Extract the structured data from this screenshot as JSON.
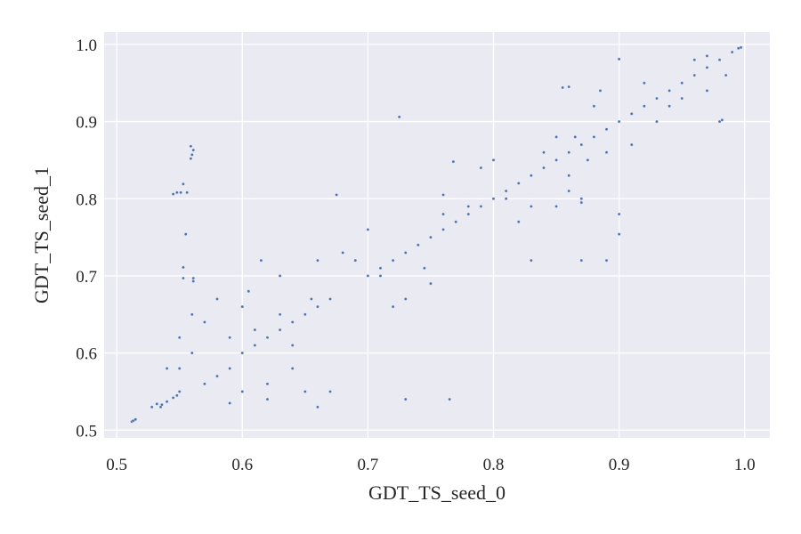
{
  "chart_data": {
    "type": "scatter",
    "xlabel": "GDT_TS_seed_0",
    "ylabel": "GDT_TS_seed_1",
    "xlim": [
      0.49,
      1.02
    ],
    "ylim": [
      0.49,
      1.016
    ],
    "xticks": [
      0.5,
      0.6,
      0.7,
      0.8,
      0.9,
      1.0
    ],
    "yticks": [
      0.5,
      0.6,
      0.7,
      0.8,
      0.9,
      1.0
    ],
    "xtick_labels": [
      "0.5",
      "0.6",
      "0.7",
      "0.8",
      "0.9",
      "1.0"
    ],
    "ytick_labels": [
      "0.5",
      "0.6",
      "0.7",
      "0.8",
      "0.9",
      "1.0"
    ],
    "grid": true,
    "colors": {
      "background": "#eaeaf2",
      "grid": "#ffffff",
      "marker": "#4c72b0",
      "marker_edge": "#ffffff"
    },
    "series": [
      {
        "points": [
          [
            0.512,
            0.511
          ],
          [
            0.514,
            0.513
          ],
          [
            0.515,
            0.514
          ],
          [
            0.513,
            0.512
          ],
          [
            0.528,
            0.53
          ],
          [
            0.532,
            0.534
          ],
          [
            0.536,
            0.533
          ],
          [
            0.535,
            0.53
          ],
          [
            0.54,
            0.537
          ],
          [
            0.545,
            0.542
          ],
          [
            0.548,
            0.545
          ],
          [
            0.55,
            0.55
          ],
          [
            0.545,
            0.806
          ],
          [
            0.548,
            0.808
          ],
          [
            0.551,
            0.808
          ],
          [
            0.553,
            0.819
          ],
          [
            0.556,
            0.808
          ],
          [
            0.559,
            0.852
          ],
          [
            0.56,
            0.857
          ],
          [
            0.561,
            0.863
          ],
          [
            0.559,
            0.868
          ],
          [
            0.555,
            0.754
          ],
          [
            0.553,
            0.711
          ],
          [
            0.553,
            0.697
          ],
          [
            0.561,
            0.697
          ],
          [
            0.561,
            0.693
          ],
          [
            0.54,
            0.58
          ],
          [
            0.55,
            0.62
          ],
          [
            0.56,
            0.6
          ],
          [
            0.57,
            0.64
          ],
          [
            0.58,
            0.57
          ],
          [
            0.59,
            0.62
          ],
          [
            0.55,
            0.58
          ],
          [
            0.57,
            0.56
          ],
          [
            0.56,
            0.65
          ],
          [
            0.58,
            0.67
          ],
          [
            0.59,
            0.58
          ],
          [
            0.6,
            0.55
          ],
          [
            0.61,
            0.63
          ],
          [
            0.62,
            0.56
          ],
          [
            0.63,
            0.65
          ],
          [
            0.64,
            0.58
          ],
          [
            0.65,
            0.55
          ],
          [
            0.6,
            0.66
          ],
          [
            0.62,
            0.54
          ],
          [
            0.66,
            0.53
          ],
          [
            0.67,
            0.55
          ],
          [
            0.64,
            0.61
          ],
          [
            0.655,
            0.67
          ],
          [
            0.59,
            0.535
          ],
          [
            0.605,
            0.68
          ],
          [
            0.615,
            0.72
          ],
          [
            0.63,
            0.7
          ],
          [
            0.66,
            0.72
          ],
          [
            0.675,
            0.805
          ],
          [
            0.68,
            0.73
          ],
          [
            0.69,
            0.72
          ],
          [
            0.7,
            0.76
          ],
          [
            0.71,
            0.7
          ],
          [
            0.72,
            0.66
          ],
          [
            0.73,
            0.67
          ],
          [
            0.745,
            0.71
          ],
          [
            0.75,
            0.69
          ],
          [
            0.76,
            0.78
          ],
          [
            0.765,
            0.54
          ],
          [
            0.768,
            0.848
          ],
          [
            0.73,
            0.54
          ],
          [
            0.725,
            0.906
          ],
          [
            0.76,
            0.805
          ],
          [
            0.78,
            0.79
          ],
          [
            0.79,
            0.84
          ],
          [
            0.8,
            0.85
          ],
          [
            0.81,
            0.8
          ],
          [
            0.82,
            0.77
          ],
          [
            0.83,
            0.79
          ],
          [
            0.84,
            0.86
          ],
          [
            0.85,
            0.88
          ],
          [
            0.86,
            0.83
          ],
          [
            0.87,
            0.8
          ],
          [
            0.875,
            0.85
          ],
          [
            0.88,
            0.92
          ],
          [
            0.885,
            0.94
          ],
          [
            0.89,
            0.86
          ],
          [
            0.9,
            0.78
          ],
          [
            0.9,
            0.754
          ],
          [
            0.9,
            0.981
          ],
          [
            0.855,
            0.944
          ],
          [
            0.86,
            0.945
          ],
          [
            0.865,
            0.88
          ],
          [
            0.91,
            0.87
          ],
          [
            0.92,
            0.95
          ],
          [
            0.93,
            0.9
          ],
          [
            0.94,
            0.92
          ],
          [
            0.95,
            0.93
          ],
          [
            0.96,
            0.98
          ],
          [
            0.97,
            0.94
          ],
          [
            0.98,
            0.9
          ],
          [
            0.982,
            0.902
          ],
          [
            0.985,
            0.96
          ],
          [
            0.97,
            0.985
          ],
          [
            0.89,
            0.72
          ],
          [
            0.87,
            0.72
          ],
          [
            0.83,
            0.72
          ],
          [
            0.85,
            0.79
          ],
          [
            0.86,
            0.81
          ],
          [
            0.87,
            0.795
          ],
          [
            0.6,
            0.6
          ],
          [
            0.61,
            0.61
          ],
          [
            0.62,
            0.62
          ],
          [
            0.63,
            0.63
          ],
          [
            0.64,
            0.64
          ],
          [
            0.65,
            0.65
          ],
          [
            0.66,
            0.66
          ],
          [
            0.67,
            0.67
          ],
          [
            0.7,
            0.7
          ],
          [
            0.71,
            0.71
          ],
          [
            0.72,
            0.72
          ],
          [
            0.73,
            0.73
          ],
          [
            0.74,
            0.74
          ],
          [
            0.75,
            0.75
          ],
          [
            0.76,
            0.76
          ],
          [
            0.77,
            0.77
          ],
          [
            0.78,
            0.78
          ],
          [
            0.79,
            0.79
          ],
          [
            0.8,
            0.8
          ],
          [
            0.81,
            0.81
          ],
          [
            0.82,
            0.82
          ],
          [
            0.83,
            0.83
          ],
          [
            0.84,
            0.84
          ],
          [
            0.85,
            0.85
          ],
          [
            0.86,
            0.86
          ],
          [
            0.87,
            0.87
          ],
          [
            0.88,
            0.88
          ],
          [
            0.89,
            0.89
          ],
          [
            0.9,
            0.9
          ],
          [
            0.91,
            0.91
          ],
          [
            0.92,
            0.92
          ],
          [
            0.93,
            0.93
          ],
          [
            0.94,
            0.94
          ],
          [
            0.95,
            0.95
          ],
          [
            0.96,
            0.96
          ],
          [
            0.97,
            0.97
          ],
          [
            0.98,
            0.98
          ],
          [
            0.99,
            0.99
          ],
          [
            0.995,
            0.995
          ],
          [
            0.997,
            0.996
          ]
        ]
      }
    ]
  }
}
